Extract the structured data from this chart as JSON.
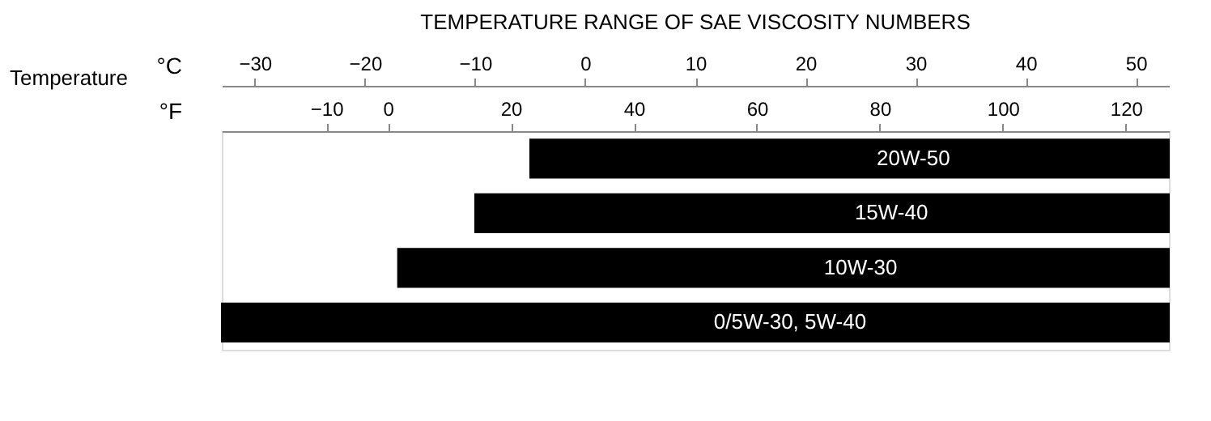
{
  "chart_data": {
    "type": "bar",
    "orientation": "horizontal",
    "title": "TEMPERATURE RANGE OF SAE VISCOSITY NUMBERS",
    "ylabel": "Temperature",
    "xlabel": "°C",
    "x2label": "°F",
    "categories": [
      "20W-50",
      "15W-40",
      "10W-30",
      "0/5W-30,  5W-40"
    ],
    "base": [
      -5,
      -10,
      -17,
      -33
    ],
    "values": [
      58,
      63,
      70,
      86
    ],
    "color": "#000000",
    "xlim": [
      -33,
      53
    ],
    "xticks": [
      -30,
      -20,
      -10,
      0,
      10,
      20,
      30,
      40,
      50
    ],
    "x2lim": [
      -27,
      127
    ],
    "x2ticks": [
      -10,
      0,
      20,
      40,
      60,
      80,
      100,
      120
    ],
    "grid": false
  }
}
